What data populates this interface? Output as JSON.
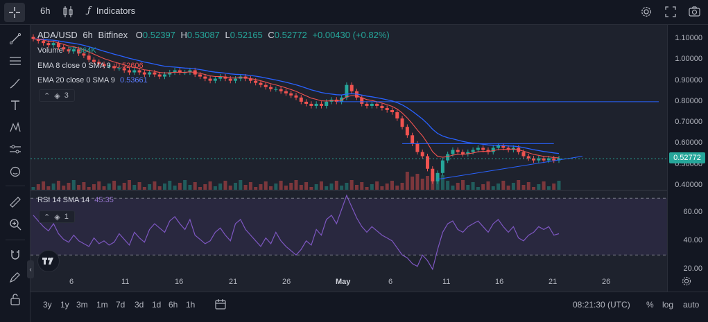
{
  "toolbar": {
    "interval": "6h",
    "indicators_label": "Indicators"
  },
  "legend": {
    "symbol": "ADA/USD",
    "interval": "6h",
    "exchange": "Bitfinex",
    "o_label": "O",
    "o_value": "0.52397",
    "h_label": "H",
    "h_value": "0.53087",
    "l_label": "L",
    "l_value": "0.52165",
    "c_label": "C",
    "c_value": "0.52772",
    "change": "+0.00430 (+0.82%)",
    "volume_label": "Volume",
    "volume_value": "77.364K",
    "ema8_label": "EMA 8 close 0 SMA 9",
    "ema8_value": "0.52606",
    "ema20_label": "EMA 20 close 0 SMA 9",
    "ema20_value": "0.53661",
    "collapsed_count": "3",
    "rsi_label": "RSI 14 SMA 14",
    "rsi_value": "45.35",
    "rsi_collapsed_count": "1"
  },
  "price_scale": {
    "ticks": [
      "1.10000",
      "1.00000",
      "0.90000",
      "0.80000",
      "0.70000",
      "0.60000",
      "0.50000",
      "0.40000"
    ],
    "last_price": "0.52772",
    "rsi_ticks": [
      "60.00",
      "40.00",
      "20.00"
    ]
  },
  "time_scale": {
    "ticks": [
      "6",
      "11",
      "16",
      "21",
      "26",
      "May",
      "6",
      "11",
      "16",
      "21",
      "26"
    ]
  },
  "bottom": {
    "ranges": [
      "3y",
      "1y",
      "3m",
      "1m",
      "7d",
      "3d",
      "1d",
      "6h",
      "1h"
    ],
    "clock": "08:21:30 (UTC)",
    "percent": "%",
    "log": "log",
    "auto": "auto"
  },
  "colors": {
    "up": "#26a69a",
    "down": "#ef5350",
    "ema8": "#ef5350",
    "ema20": "#2962ff",
    "rsi": "#7e57c2",
    "background": "#131722",
    "pane": "#1e222d"
  },
  "chart_data": {
    "type": "line",
    "symbol": "ADA/USD",
    "close_series": [
      1.1,
      1.09,
      1.08,
      1.07,
      1.08,
      1.06,
      1.05,
      1.04,
      1.05,
      1.03,
      1.02,
      1.0,
      0.99,
      0.98,
      0.97,
      0.97,
      0.96,
      0.96,
      0.95,
      0.94,
      0.95,
      0.94,
      0.93,
      0.94,
      0.93,
      0.92,
      0.93,
      0.94,
      0.95,
      0.94,
      0.94,
      0.95,
      0.93,
      0.92,
      0.91,
      0.9,
      0.91,
      0.92,
      0.91,
      0.9,
      0.91,
      0.92,
      0.91,
      0.9,
      0.89,
      0.88,
      0.87,
      0.86,
      0.86,
      0.85,
      0.84,
      0.83,
      0.82,
      0.8,
      0.79,
      0.78,
      0.79,
      0.78,
      0.8,
      0.81,
      0.8,
      0.82,
      0.88,
      0.85,
      0.82,
      0.79,
      0.78,
      0.79,
      0.78,
      0.77,
      0.76,
      0.75,
      0.72,
      0.68,
      0.64,
      0.6,
      0.56,
      0.54,
      0.48,
      0.42,
      0.46,
      0.52,
      0.55,
      0.57,
      0.56,
      0.55,
      0.56,
      0.57,
      0.58,
      0.57,
      0.56,
      0.58,
      0.59,
      0.58,
      0.57,
      0.58,
      0.56,
      0.54,
      0.53,
      0.52,
      0.53,
      0.52,
      0.53,
      0.52,
      0.53
    ],
    "rsi_series": [
      58,
      54,
      50,
      47,
      52,
      45,
      41,
      39,
      44,
      40,
      38,
      36,
      42,
      38,
      40,
      37,
      39,
      45,
      41,
      37,
      46,
      42,
      39,
      48,
      52,
      49,
      46,
      54,
      57,
      52,
      48,
      55,
      44,
      41,
      38,
      40,
      46,
      49,
      44,
      40,
      52,
      55,
      48,
      44,
      40,
      36,
      42,
      38,
      46,
      40,
      36,
      33,
      30,
      34,
      40,
      37,
      48,
      44,
      55,
      58,
      52,
      62,
      72,
      64,
      56,
      50,
      46,
      50,
      47,
      44,
      42,
      40,
      35,
      30,
      28,
      24,
      22,
      30,
      26,
      20,
      34,
      46,
      52,
      54,
      48,
      46,
      50,
      52,
      54,
      50,
      46,
      52,
      55,
      50,
      46,
      50,
      42,
      40,
      44,
      46,
      50,
      48,
      50,
      44,
      45
    ],
    "ylim": [
      0.38,
      1.14
    ],
    "rsi_ylim": [
      15,
      75
    ],
    "rsi_bands": [
      70,
      30
    ],
    "resistance_level": 0.8,
    "range_high": 0.6,
    "last_price": 0.52772
  }
}
